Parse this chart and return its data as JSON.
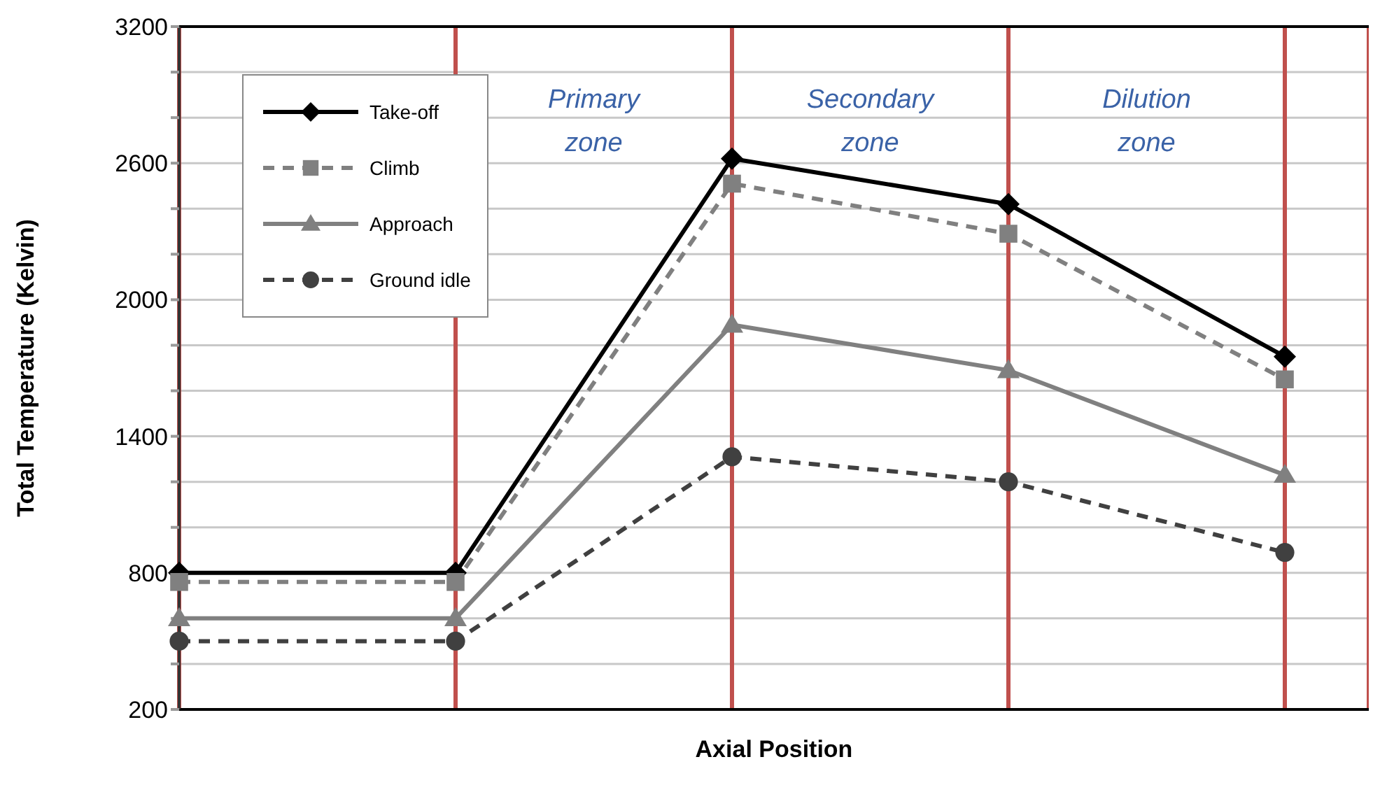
{
  "chart_data": {
    "type": "line",
    "xlabel": "Axial Position",
    "ylabel": "Total Temperature (Kelvin)",
    "categories": [
      null,
      null,
      null,
      null,
      null
    ],
    "ylim": [
      200,
      3200
    ],
    "yticks": [
      200,
      {
        "value": 400,
        "label": null
      },
      {
        "value": 600,
        "label": null
      },
      800,
      {
        "value": 1000,
        "label": null
      },
      {
        "value": 1200,
        "label": null
      },
      1400,
      {
        "value": 1600,
        "label": null
      },
      {
        "value": 1800,
        "label": null
      },
      2000,
      {
        "value": 2200,
        "label": null
      },
      {
        "value": 2400,
        "label": null
      },
      2600,
      {
        "value": 2800,
        "label": null
      },
      {
        "value": 3000,
        "label": null
      },
      3200
    ],
    "grid": true,
    "legend": "top left",
    "series": [
      {
        "name": "Take-off",
        "color": "#000000",
        "marker": "diamond",
        "line_style": "solid",
        "values": [
          800,
          800,
          2620,
          2420,
          1750
        ]
      },
      {
        "name": "Climb",
        "color": "#808080",
        "marker": "square",
        "line_style": "dashed",
        "values": [
          760,
          760,
          2510,
          2290,
          1650
        ]
      },
      {
        "name": "Approach",
        "color": "#808080",
        "marker": "triangle",
        "line_style": "solid",
        "values": [
          600,
          600,
          1890,
          1690,
          1230
        ]
      },
      {
        "name": "Ground idle",
        "color": "#404040",
        "marker": "circle",
        "line_style": "dashed",
        "values": [
          500,
          500,
          1310,
          1200,
          890
        ]
      }
    ],
    "annotations": [
      "Primary zone",
      "Secondary zone",
      "Dilution zone"
    ]
  }
}
